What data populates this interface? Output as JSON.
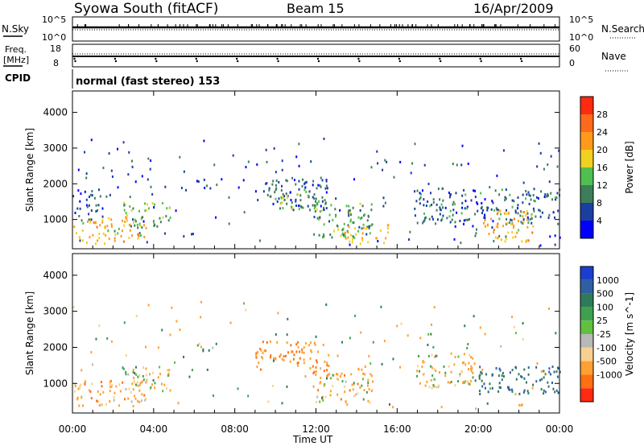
{
  "header": {
    "station": "Syowa South (fitACF)",
    "beam": "Beam 15",
    "date": "16/Apr/2009"
  },
  "noise_panel": {
    "left_label": "N.Sky",
    "right_label": "N.Search",
    "left_ticks": [
      "10^5",
      "10^0"
    ],
    "right_ticks": [
      "10^5",
      "10^0"
    ]
  },
  "freq_panel": {
    "left_label_1": "Freq.",
    "left_label_2": "[MHz]",
    "right_label": "Nave",
    "left_ticks": [
      "18",
      "8"
    ],
    "right_ticks": [
      "60",
      "0"
    ]
  },
  "cpid_panel": {
    "label": "CPID",
    "value": "normal (fast stereo) 153"
  },
  "chart_data": [
    {
      "type": "heatmap",
      "title": "Power",
      "xlabel": "Time UT",
      "ylabel": "Slant Range [km]",
      "xlim": [
        "00:00",
        "24:00"
      ],
      "ylim": [
        180,
        4600
      ],
      "yticks": [
        "1000",
        "2000",
        "3000",
        "4000"
      ],
      "colorbar": {
        "label": "Power [dB]",
        "ticks": [
          "4",
          "8",
          "12",
          "16",
          "20",
          "24",
          "28"
        ],
        "colors": [
          "#0000ff",
          "#1a3fa0",
          "#3d7d5a",
          "#4fbf4f",
          "#f0d020",
          "#ff9a1a",
          "#ff6a1a",
          "#ff2a10"
        ]
      },
      "echo_regions": [
        {
          "t": [
            0.0,
            3.6
          ],
          "r": [
            350,
            1100
          ],
          "level": 20
        },
        {
          "t": [
            2.4,
            4.8
          ],
          "r": [
            800,
            1500
          ],
          "level": 14
        },
        {
          "t": [
            0.2,
            1.5
          ],
          "r": [
            1000,
            1900
          ],
          "level": 6
        },
        {
          "t": [
            6.1,
            7.2
          ],
          "r": [
            1900,
            2150
          ],
          "level": 6
        },
        {
          "t": [
            9.0,
            12.6
          ],
          "r": [
            1400,
            2200
          ],
          "level": 8
        },
        {
          "t": [
            10.2,
            12.2
          ],
          "r": [
            1300,
            1900
          ],
          "level": 14
        },
        {
          "t": [
            11.8,
            14.8
          ],
          "r": [
            500,
            1500
          ],
          "level": 12
        },
        {
          "t": [
            13.2,
            15.6
          ],
          "r": [
            350,
            900
          ],
          "level": 18
        },
        {
          "t": [
            16.8,
            24.0
          ],
          "r": [
            900,
            1900
          ],
          "level": 8
        },
        {
          "t": [
            20.2,
            22.8
          ],
          "r": [
            400,
            1300
          ],
          "level": 20
        }
      ]
    },
    {
      "type": "heatmap",
      "title": "Velocity",
      "xlabel": "Time UT",
      "ylabel": "Slant Range [km]",
      "xlim": [
        "00:00",
        "24:00"
      ],
      "ylim": [
        180,
        4600
      ],
      "yticks": [
        "1000",
        "2000",
        "3000",
        "4000"
      ],
      "xticks": [
        "00:00",
        "04:00",
        "08:00",
        "12:00",
        "16:00",
        "20:00",
        "00:00"
      ],
      "colorbar": {
        "label": "Velocity [m s^-1]",
        "ticks": [
          "1000",
          "500",
          "100",
          "25",
          "-25",
          "-100",
          "-500",
          "-1000"
        ],
        "colors": [
          "#1a3fd0",
          "#2f5fa0",
          "#2f7a5a",
          "#3fa050",
          "#60c040",
          "#b8b8b8",
          "#f8d090",
          "#ffa030",
          "#ff7010",
          "#ff2a10"
        ]
      },
      "echo_regions": [
        {
          "t": [
            0.0,
            3.6
          ],
          "r": [
            350,
            1100
          ],
          "v": -200
        },
        {
          "t": [
            2.4,
            4.8
          ],
          "r": [
            800,
            1500
          ],
          "v": -80
        },
        {
          "t": [
            6.1,
            7.2
          ],
          "r": [
            1900,
            2150
          ],
          "v": 0
        },
        {
          "t": [
            9.0,
            12.6
          ],
          "r": [
            1400,
            2200
          ],
          "v": -300
        },
        {
          "t": [
            11.8,
            14.8
          ],
          "r": [
            500,
            1500
          ],
          "v": -150
        },
        {
          "t": [
            16.8,
            19.8
          ],
          "r": [
            900,
            1900
          ],
          "v": -100
        },
        {
          "t": [
            19.8,
            24.0
          ],
          "r": [
            700,
            1500
          ],
          "v": 300
        }
      ]
    }
  ]
}
